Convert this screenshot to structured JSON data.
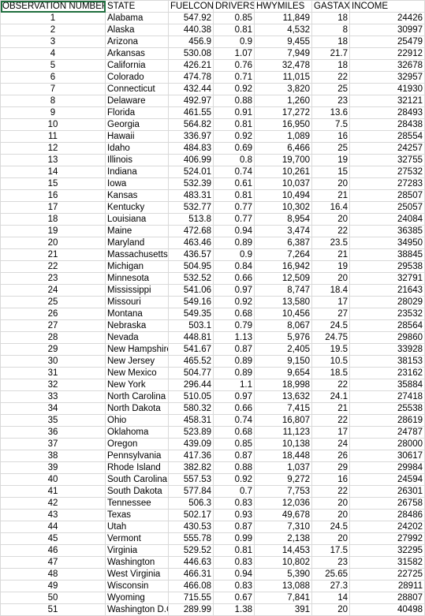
{
  "headers": [
    "OBSERVATION NUMBER",
    "STATE",
    "FUELCON",
    "DRIVERS",
    "HWYMILES",
    "GASTAX",
    "INCOME"
  ],
  "rows": [
    [
      "1",
      "Alabama",
      "547.92",
      "0.85",
      "11,849",
      "18",
      "24426"
    ],
    [
      "2",
      "Alaska",
      "440.38",
      "0.81",
      "4,532",
      "8",
      "30997"
    ],
    [
      "3",
      "Arizona",
      "456.9",
      "0.9",
      "9,455",
      "18",
      "25479"
    ],
    [
      "4",
      "Arkansas",
      "530.08",
      "1.07",
      "7,949",
      "21.7",
      "22912"
    ],
    [
      "5",
      "California",
      "426.21",
      "0.76",
      "32,478",
      "18",
      "32678"
    ],
    [
      "6",
      "Colorado",
      "474.78",
      "0.71",
      "11,015",
      "22",
      "32957"
    ],
    [
      "7",
      "Connecticut",
      "432.44",
      "0.92",
      "3,820",
      "25",
      "41930"
    ],
    [
      "8",
      "Delaware",
      "492.97",
      "0.88",
      "1,260",
      "23",
      "32121"
    ],
    [
      "9",
      "Florida",
      "461.55",
      "0.91",
      "17,272",
      "13.6",
      "28493"
    ],
    [
      "10",
      "Georgia",
      "564.82",
      "0.81",
      "16,950",
      "7.5",
      "28438"
    ],
    [
      "11",
      "Hawaii",
      "336.97",
      "0.92",
      "1,089",
      "16",
      "28554"
    ],
    [
      "12",
      "Idaho",
      "484.83",
      "0.69",
      "6,466",
      "25",
      "24257"
    ],
    [
      "13",
      "Illinois",
      "406.99",
      "0.8",
      "19,700",
      "19",
      "32755"
    ],
    [
      "14",
      "Indiana",
      "524.01",
      "0.74",
      "10,261",
      "15",
      "27532"
    ],
    [
      "15",
      "Iowa",
      "532.39",
      "0.61",
      "10,037",
      "20",
      "27283"
    ],
    [
      "16",
      "Kansas",
      "483.31",
      "0.81",
      "10,494",
      "21",
      "28507"
    ],
    [
      "17",
      "Kentucky",
      "532.77",
      "0.77",
      "10,302",
      "16.4",
      "25057"
    ],
    [
      "18",
      "Louisiana",
      "513.8",
      "0.77",
      "8,954",
      "20",
      "24084"
    ],
    [
      "19",
      "Maine",
      "472.68",
      "0.94",
      "3,474",
      "22",
      "36385"
    ],
    [
      "20",
      "Maryland",
      "463.46",
      "0.89",
      "6,387",
      "23.5",
      "34950"
    ],
    [
      "21",
      "Massachusetts",
      "436.57",
      "0.9",
      "7,264",
      "21",
      "38845"
    ],
    [
      "22",
      "Michigan",
      "504.95",
      "0.84",
      "16,942",
      "19",
      "29538"
    ],
    [
      "23",
      "Minnesota",
      "532.52",
      "0.66",
      "12,509",
      "20",
      "32791"
    ],
    [
      "24",
      "Mississippi",
      "541.06",
      "0.97",
      "8,747",
      "18.4",
      "21643"
    ],
    [
      "25",
      "Missouri",
      "549.16",
      "0.92",
      "13,580",
      "17",
      "28029"
    ],
    [
      "26",
      "Montana",
      "549.35",
      "0.68",
      "10,456",
      "27",
      "23532"
    ],
    [
      "27",
      "Nebraska",
      "503.1",
      "0.79",
      "8,067",
      "24.5",
      "28564"
    ],
    [
      "28",
      "Nevada",
      "448.81",
      "1.13",
      "5,976",
      "24.75",
      "29860"
    ],
    [
      "29",
      "New Hampshire",
      "541.67",
      "0.87",
      "2,405",
      "19.5",
      "33928"
    ],
    [
      "30",
      "New Jersey",
      "465.52",
      "0.89",
      "9,150",
      "10.5",
      "38153"
    ],
    [
      "31",
      "New Mexico",
      "504.77",
      "0.89",
      "9,654",
      "18.5",
      "23162"
    ],
    [
      "32",
      "New York",
      "296.44",
      "1.1",
      "18,998",
      "22",
      "35884"
    ],
    [
      "33",
      "North Carolina",
      "510.05",
      "0.97",
      "13,632",
      "24.1",
      "27418"
    ],
    [
      "34",
      "North Dakota",
      "580.32",
      "0.66",
      "7,415",
      "21",
      "25538"
    ],
    [
      "35",
      "Ohio",
      "458.31",
      "0.74",
      "16,807",
      "22",
      "28619"
    ],
    [
      "36",
      "Oklahoma",
      "523.89",
      "0.68",
      "11,123",
      "17",
      "24787"
    ],
    [
      "37",
      "Oregon",
      "439.09",
      "0.85",
      "10,138",
      "24",
      "28000"
    ],
    [
      "38",
      "Pennsylvania",
      "417.36",
      "0.87",
      "18,448",
      "26",
      "30617"
    ],
    [
      "39",
      "Rhode Island",
      "382.82",
      "0.88",
      "1,037",
      "29",
      "29984"
    ],
    [
      "40",
      "South Carolina",
      "557.53",
      "0.92",
      "9,272",
      "16",
      "24594"
    ],
    [
      "41",
      "South Dakota",
      "577.84",
      "0.7",
      "7,753",
      "22",
      "26301"
    ],
    [
      "42",
      "Tennessee",
      "506.3",
      "0.83",
      "12,036",
      "20",
      "26758"
    ],
    [
      "43",
      "Texas",
      "502.17",
      "0.93",
      "49,678",
      "20",
      "28486"
    ],
    [
      "44",
      "Utah",
      "430.53",
      "0.87",
      "7,310",
      "24.5",
      "24202"
    ],
    [
      "45",
      "Vermont",
      "555.78",
      "0.99",
      "2,138",
      "20",
      "27992"
    ],
    [
      "46",
      "Virginia",
      "529.52",
      "0.81",
      "14,453",
      "17.5",
      "32295"
    ],
    [
      "47",
      "Washington",
      "446.63",
      "0.83",
      "10,802",
      "23",
      "31582"
    ],
    [
      "48",
      "West Virginia",
      "466.31",
      "0.94",
      "5,390",
      "25.65",
      "22725"
    ],
    [
      "49",
      "Wisconsin",
      "466.08",
      "0.83",
      "13,088",
      "27.3",
      "28911"
    ],
    [
      "50",
      "Wyoming",
      "715.55",
      "0.67",
      "7,841",
      "14",
      "28807"
    ],
    [
      "51",
      "Washington D.C.",
      "289.99",
      "1.38",
      "391",
      "20",
      "40498"
    ]
  ]
}
